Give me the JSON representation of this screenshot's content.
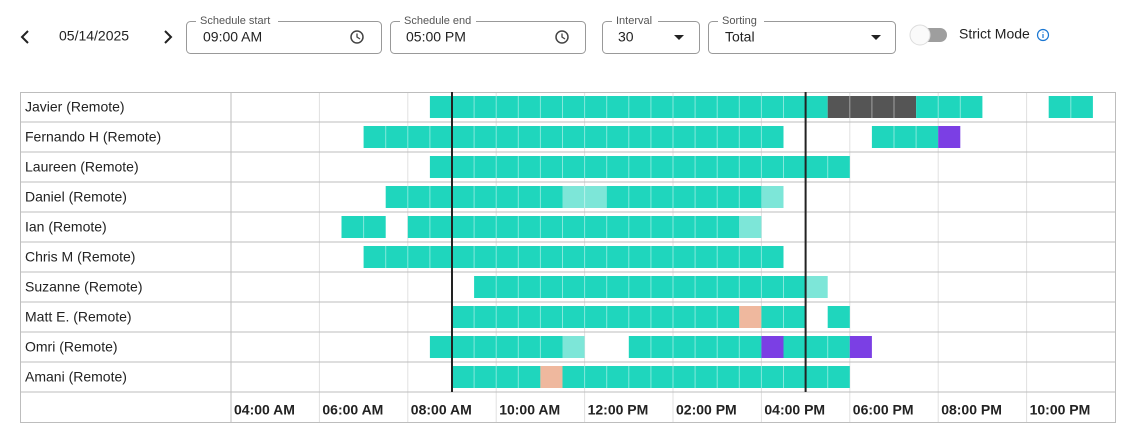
{
  "toolbar": {
    "date": "05/14/2025",
    "schedule_start": {
      "label": "Schedule start",
      "value": "09:00 AM"
    },
    "schedule_end": {
      "label": "Schedule end",
      "value": "05:00 PM"
    },
    "interval": {
      "label": "Interval",
      "value": "30"
    },
    "sorting": {
      "label": "Sorting",
      "value": "Total"
    },
    "strict_mode": "Strict Mode"
  },
  "timeline": {
    "start": 4,
    "end": 24,
    "ticks": [
      {
        "value": 4,
        "label": "04:00 AM"
      },
      {
        "value": 6,
        "label": "06:00 AM"
      },
      {
        "value": 8,
        "label": "08:00 AM"
      },
      {
        "value": 10,
        "label": "10:00 AM"
      },
      {
        "value": 12,
        "label": "12:00 PM"
      },
      {
        "value": 14,
        "label": "02:00 PM"
      },
      {
        "value": 16,
        "label": "04:00 PM"
      },
      {
        "value": 18,
        "label": "06:00 PM"
      },
      {
        "value": 20,
        "label": "08:00 PM"
      },
      {
        "value": 22,
        "label": "10:00 PM"
      }
    ],
    "schedule_lines": [
      9,
      17
    ]
  },
  "rows": [
    {
      "name": "Javier (Remote)",
      "blocks": [
        {
          "start": 8.5,
          "end": 17.5,
          "color": "#1fd6bd"
        },
        {
          "start": 17.5,
          "end": 19.5,
          "color": "#555555"
        },
        {
          "start": 19.5,
          "end": 21,
          "color": "#1fd6bd"
        },
        {
          "start": 22.5,
          "end": 23.5,
          "color": "#1fd6bd"
        }
      ]
    },
    {
      "name": "Fernando H (Remote)",
      "blocks": [
        {
          "start": 7,
          "end": 16.5,
          "color": "#1fd6bd"
        },
        {
          "start": 18.5,
          "end": 20,
          "color": "#1fd6bd"
        },
        {
          "start": 20,
          "end": 20.5,
          "color": "#7b3fe4"
        }
      ]
    },
    {
      "name": "Laureen (Remote)",
      "blocks": [
        {
          "start": 8.5,
          "end": 18,
          "color": "#1fd6bd"
        }
      ]
    },
    {
      "name": "Daniel (Remote)",
      "blocks": [
        {
          "start": 7.5,
          "end": 11.5,
          "color": "#1fd6bd"
        },
        {
          "start": 11.5,
          "end": 12.5,
          "color": "#7de6d8"
        },
        {
          "start": 12.5,
          "end": 16,
          "color": "#1fd6bd"
        },
        {
          "start": 16,
          "end": 16.5,
          "color": "#7de6d8"
        }
      ]
    },
    {
      "name": "Ian (Remote)",
      "blocks": [
        {
          "start": 6.5,
          "end": 7.5,
          "color": "#1fd6bd"
        },
        {
          "start": 8,
          "end": 15.5,
          "color": "#1fd6bd"
        },
        {
          "start": 15.5,
          "end": 16,
          "color": "#7de6d8"
        }
      ]
    },
    {
      "name": "Chris M (Remote)",
      "blocks": [
        {
          "start": 7,
          "end": 16.5,
          "color": "#1fd6bd"
        }
      ]
    },
    {
      "name": "Suzanne (Remote)",
      "blocks": [
        {
          "start": 9.5,
          "end": 17,
          "color": "#1fd6bd"
        },
        {
          "start": 17,
          "end": 17.5,
          "color": "#7de6d8"
        }
      ]
    },
    {
      "name": "Matt E. (Remote)",
      "blocks": [
        {
          "start": 9,
          "end": 15.5,
          "color": "#1fd6bd"
        },
        {
          "start": 15.5,
          "end": 16,
          "color": "#efb89e"
        },
        {
          "start": 16,
          "end": 17,
          "color": "#1fd6bd"
        },
        {
          "start": 17.5,
          "end": 18,
          "color": "#1fd6bd"
        }
      ]
    },
    {
      "name": "Omri (Remote)",
      "blocks": [
        {
          "start": 8.5,
          "end": 11.5,
          "color": "#1fd6bd"
        },
        {
          "start": 11.5,
          "end": 12,
          "color": "#7de6d8"
        },
        {
          "start": 13,
          "end": 16,
          "color": "#1fd6bd"
        },
        {
          "start": 16,
          "end": 16.5,
          "color": "#7b3fe4"
        },
        {
          "start": 16.5,
          "end": 18,
          "color": "#1fd6bd"
        },
        {
          "start": 18,
          "end": 18.5,
          "color": "#7b3fe4"
        }
      ]
    },
    {
      "name": "Amani (Remote)",
      "blocks": [
        {
          "start": 9,
          "end": 11,
          "color": "#1fd6bd"
        },
        {
          "start": 11,
          "end": 11.5,
          "color": "#efb89e"
        },
        {
          "start": 11.5,
          "end": 18,
          "color": "#1fd6bd"
        }
      ]
    }
  ]
}
